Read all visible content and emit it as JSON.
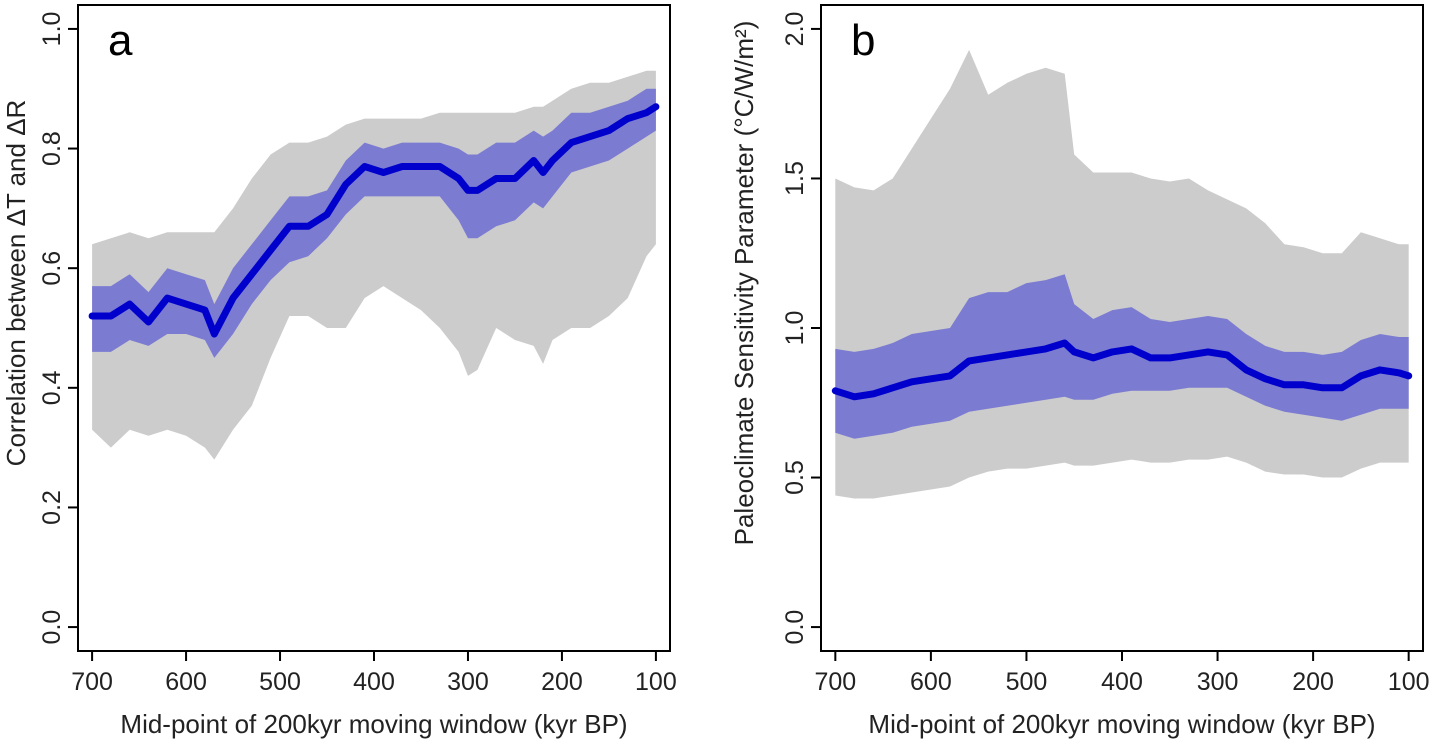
{
  "chart_data": [
    {
      "type": "area",
      "panel_label": "a",
      "xlabel": "Mid-point of 200kyr moving window (kyr BP)",
      "ylabel": "Correlation between ΔT and ΔR",
      "xlim": [
        715,
        85
      ],
      "ylim": [
        -0.04,
        1.04
      ],
      "xticks": [
        700,
        600,
        500,
        400,
        300,
        200,
        100
      ],
      "yticks": [
        0.0,
        0.2,
        0.4,
        0.6,
        0.8,
        1.0
      ],
      "xtick_labels": [
        "700",
        "600",
        "500",
        "400",
        "300",
        "200",
        "100"
      ],
      "ytick_labels": [
        "0.0",
        "0.2",
        "0.4",
        "0.6",
        "0.8",
        "1.0"
      ],
      "grid": false,
      "x": [
        700,
        680,
        660,
        640,
        620,
        600,
        580,
        570,
        550,
        530,
        510,
        490,
        470,
        450,
        430,
        410,
        390,
        370,
        350,
        330,
        310,
        300,
        290,
        270,
        250,
        230,
        220,
        210,
        190,
        170,
        150,
        130,
        110,
        100
      ],
      "series": [
        {
          "name": "median",
          "values": [
            0.52,
            0.52,
            0.54,
            0.51,
            0.55,
            0.54,
            0.53,
            0.49,
            0.55,
            0.59,
            0.63,
            0.67,
            0.67,
            0.69,
            0.74,
            0.77,
            0.76,
            0.77,
            0.77,
            0.77,
            0.75,
            0.73,
            0.73,
            0.75,
            0.75,
            0.78,
            0.76,
            0.78,
            0.81,
            0.82,
            0.83,
            0.85,
            0.86,
            0.87
          ]
        },
        {
          "name": "inner_low",
          "values": [
            0.46,
            0.46,
            0.48,
            0.47,
            0.49,
            0.49,
            0.48,
            0.45,
            0.49,
            0.54,
            0.58,
            0.61,
            0.62,
            0.65,
            0.69,
            0.72,
            0.72,
            0.72,
            0.72,
            0.72,
            0.68,
            0.65,
            0.65,
            0.67,
            0.68,
            0.71,
            0.7,
            0.72,
            0.76,
            0.77,
            0.78,
            0.8,
            0.82,
            0.83
          ]
        },
        {
          "name": "inner_high",
          "values": [
            0.57,
            0.57,
            0.59,
            0.56,
            0.6,
            0.59,
            0.58,
            0.54,
            0.6,
            0.64,
            0.68,
            0.72,
            0.72,
            0.73,
            0.78,
            0.81,
            0.8,
            0.81,
            0.81,
            0.81,
            0.8,
            0.79,
            0.79,
            0.81,
            0.81,
            0.83,
            0.82,
            0.83,
            0.86,
            0.86,
            0.87,
            0.88,
            0.9,
            0.9
          ]
        },
        {
          "name": "outer_low",
          "values": [
            0.33,
            0.3,
            0.33,
            0.32,
            0.33,
            0.32,
            0.3,
            0.28,
            0.33,
            0.37,
            0.45,
            0.52,
            0.52,
            0.5,
            0.5,
            0.55,
            0.57,
            0.55,
            0.53,
            0.5,
            0.46,
            0.42,
            0.43,
            0.5,
            0.48,
            0.47,
            0.44,
            0.48,
            0.5,
            0.5,
            0.52,
            0.55,
            0.62,
            0.64
          ]
        },
        {
          "name": "outer_high",
          "values": [
            0.64,
            0.65,
            0.66,
            0.65,
            0.66,
            0.66,
            0.66,
            0.66,
            0.7,
            0.75,
            0.79,
            0.81,
            0.81,
            0.82,
            0.84,
            0.85,
            0.85,
            0.85,
            0.85,
            0.86,
            0.86,
            0.86,
            0.86,
            0.86,
            0.86,
            0.87,
            0.87,
            0.88,
            0.9,
            0.91,
            0.91,
            0.92,
            0.93,
            0.93
          ]
        }
      ]
    },
    {
      "type": "area",
      "panel_label": "b",
      "xlabel": "Mid-point of 200kyr moving window (kyr BP)",
      "ylabel": "Paleoclimate Sensitivity Parameter (°C/W/m²)",
      "xlim": [
        715,
        85
      ],
      "ylim": [
        -0.08,
        2.08
      ],
      "xticks": [
        700,
        600,
        500,
        400,
        300,
        200,
        100
      ],
      "yticks": [
        0.0,
        0.5,
        1.0,
        1.5,
        2.0
      ],
      "xtick_labels": [
        "700",
        "600",
        "500",
        "400",
        "300",
        "200",
        "100"
      ],
      "ytick_labels": [
        "0.0",
        "0.5",
        "1.0",
        "1.5",
        "2.0"
      ],
      "grid": false,
      "x": [
        700,
        680,
        660,
        640,
        620,
        600,
        580,
        560,
        540,
        520,
        500,
        480,
        460,
        450,
        430,
        410,
        390,
        370,
        350,
        330,
        310,
        290,
        270,
        250,
        230,
        210,
        190,
        170,
        150,
        130,
        110,
        100
      ],
      "series": [
        {
          "name": "median",
          "values": [
            0.79,
            0.77,
            0.78,
            0.8,
            0.82,
            0.83,
            0.84,
            0.89,
            0.9,
            0.91,
            0.92,
            0.93,
            0.95,
            0.92,
            0.9,
            0.92,
            0.93,
            0.9,
            0.9,
            0.91,
            0.92,
            0.91,
            0.86,
            0.83,
            0.81,
            0.81,
            0.8,
            0.8,
            0.84,
            0.86,
            0.85,
            0.84
          ]
        },
        {
          "name": "inner_low",
          "values": [
            0.65,
            0.63,
            0.64,
            0.65,
            0.67,
            0.68,
            0.69,
            0.72,
            0.73,
            0.74,
            0.75,
            0.76,
            0.77,
            0.76,
            0.76,
            0.78,
            0.79,
            0.79,
            0.79,
            0.8,
            0.8,
            0.8,
            0.77,
            0.74,
            0.72,
            0.71,
            0.7,
            0.69,
            0.71,
            0.73,
            0.73,
            0.73
          ]
        },
        {
          "name": "inner_high",
          "values": [
            0.93,
            0.92,
            0.93,
            0.95,
            0.98,
            0.99,
            1.0,
            1.1,
            1.12,
            1.12,
            1.15,
            1.16,
            1.18,
            1.08,
            1.03,
            1.06,
            1.07,
            1.03,
            1.02,
            1.03,
            1.04,
            1.03,
            0.98,
            0.94,
            0.92,
            0.92,
            0.91,
            0.92,
            0.96,
            0.98,
            0.97,
            0.97
          ]
        },
        {
          "name": "outer_low",
          "values": [
            0.44,
            0.43,
            0.43,
            0.44,
            0.45,
            0.46,
            0.47,
            0.5,
            0.52,
            0.53,
            0.53,
            0.54,
            0.55,
            0.54,
            0.54,
            0.55,
            0.56,
            0.55,
            0.55,
            0.56,
            0.56,
            0.57,
            0.55,
            0.52,
            0.51,
            0.51,
            0.5,
            0.5,
            0.53,
            0.55,
            0.55,
            0.55
          ]
        },
        {
          "name": "outer_high",
          "values": [
            1.5,
            1.47,
            1.46,
            1.5,
            1.6,
            1.7,
            1.8,
            1.93,
            1.78,
            1.82,
            1.85,
            1.87,
            1.85,
            1.58,
            1.52,
            1.52,
            1.52,
            1.5,
            1.49,
            1.5,
            1.46,
            1.43,
            1.4,
            1.35,
            1.28,
            1.27,
            1.25,
            1.25,
            1.32,
            1.3,
            1.28,
            1.28
          ]
        }
      ]
    }
  ],
  "colors": {
    "outer_band": "#cccccc",
    "inner_band": "#7b7bd2",
    "median_line": "#0000cc"
  }
}
